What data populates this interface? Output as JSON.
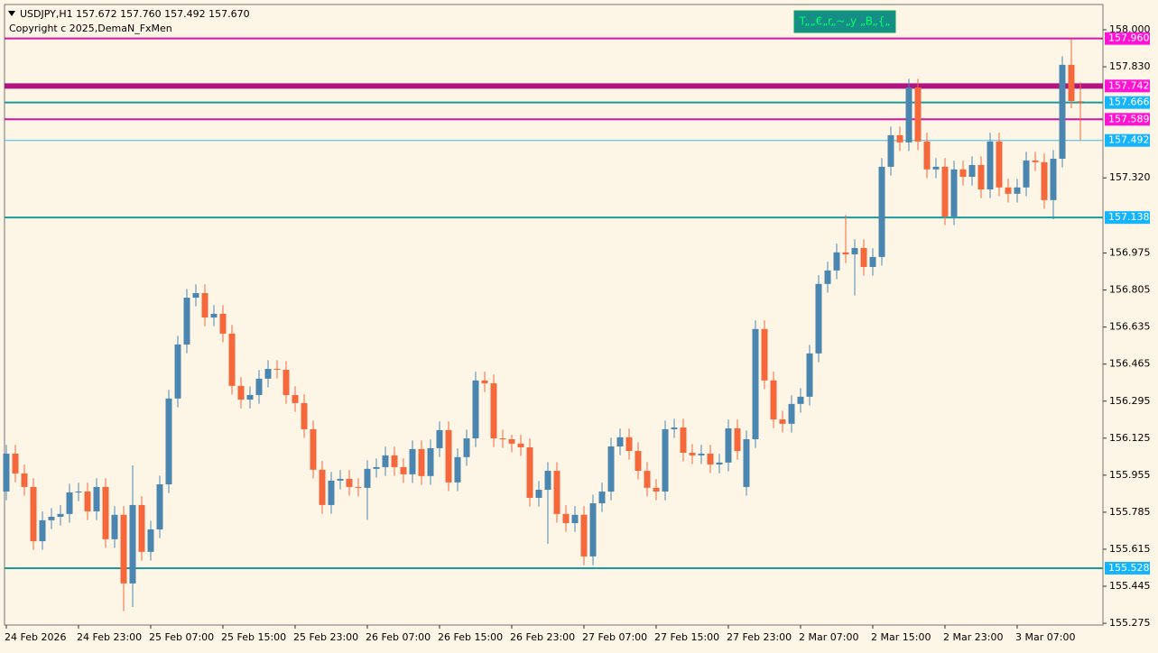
{
  "chart_data": {
    "type": "candlestick",
    "header": "USDJPY,H1  157.672 157.760 157.492 157.670",
    "subtitle": "Copyright c 2025,DemaN_FxMen",
    "button": "T„„€„r„~„y „B„{„",
    "bull_color": "#4a86b0",
    "bear_color": "#f4683c",
    "categories": [
      "24 Feb 2026",
      null,
      null,
      null,
      null,
      null,
      null,
      null,
      "24 Feb 23:00",
      null,
      null,
      null,
      null,
      null,
      null,
      null,
      "25 Feb 07:00",
      null,
      null,
      null,
      null,
      null,
      null,
      null,
      "25 Feb 15:00",
      null,
      null,
      null,
      null,
      null,
      null,
      null,
      "25 Feb 23:00",
      null,
      null,
      null,
      null,
      null,
      null,
      null,
      "26 Feb 07:00",
      null,
      null,
      null,
      null,
      null,
      null,
      null,
      "26 Feb 15:00",
      null,
      null,
      null,
      null,
      null,
      null,
      null,
      "26 Feb 23:00",
      null,
      null,
      null,
      null,
      null,
      null,
      null,
      "27 Feb 07:00",
      null,
      null,
      null,
      null,
      null,
      null,
      null,
      "27 Feb 15:00",
      null,
      null,
      null,
      null,
      null,
      null,
      null,
      "27 Feb 23:00",
      null,
      null,
      null,
      null,
      null,
      null,
      null,
      "2 Mar 07:00",
      null,
      null,
      null,
      null,
      null,
      null,
      null,
      "2 Mar 15:00",
      null,
      null,
      null,
      null,
      null,
      null,
      null,
      "2 Mar 23:00",
      null,
      null,
      null,
      null,
      null,
      null,
      null,
      "3 Mar 07:00",
      null,
      null,
      null,
      null,
      null,
      null,
      null
    ],
    "open": [
      155.88,
      156.054,
      155.963,
      155.901,
      155.652,
      155.748,
      155.764,
      155.777,
      155.876,
      155.88,
      155.789,
      155.901,
      155.661,
      155.773,
      155.458,
      155.818,
      155.603,
      155.706,
      155.913,
      156.307,
      156.555,
      156.77,
      156.791,
      156.679,
      156.696,
      156.605,
      156.365,
      156.302,
      156.323,
      156.398,
      156.443,
      156.439,
      156.323,
      156.286,
      156.166,
      155.98,
      155.818,
      155.93,
      155.938,
      155.901,
      155.897,
      155.984,
      155.992,
      156.046,
      155.992,
      155.959,
      156.075,
      155.951,
      156.079,
      156.162,
      155.922,
      156.038,
      156.124,
      156.39,
      156.377,
      156.124,
      156.12,
      156.1,
      156.083,
      155.851,
      155.888,
      155.975,
      155.777,
      155.735,
      155.773,
      155.582,
      155.826,
      155.88,
      156.087,
      156.129,
      156.066,
      155.975,
      155.897,
      155.88,
      156.166,
      156.174,
      156.058,
      156.046,
      156.054,
      156.004,
      156.013,
      156.17,
      155.901,
      156.12,
      156.626,
      156.39,
      156.211,
      156.191,
      156.282,
      156.315,
      156.514,
      156.833,
      156.895,
      156.978,
      156.969,
      156.998,
      156.911,
      156.957,
      157.371,
      157.516,
      157.483,
      157.735,
      157.487,
      157.359,
      157.371,
      157.143,
      157.359,
      157.325,
      157.379,
      157.267,
      157.487,
      157.276,
      157.247,
      157.276,
      157.4,
      157.392,
      157.218,
      157.408,
      157.839,
      157.672
    ],
    "high": [
      156.094,
      156.094,
      156.003,
      155.941,
      155.788,
      155.804,
      155.817,
      155.916,
      155.92,
      155.92,
      155.941,
      155.941,
      155.813,
      155.813,
      156.0,
      155.858,
      155.746,
      155.953,
      156.347,
      156.595,
      156.81,
      156.831,
      156.831,
      156.736,
      156.736,
      156.645,
      156.405,
      156.363,
      156.438,
      156.483,
      156.483,
      156.479,
      156.363,
      156.326,
      156.206,
      156.02,
      155.97,
      155.978,
      155.978,
      155.941,
      156.024,
      156.032,
      156.086,
      156.086,
      156.032,
      156.115,
      156.115,
      156.119,
      156.202,
      156.202,
      156.078,
      156.164,
      156.43,
      156.43,
      156.417,
      156.164,
      156.14,
      156.14,
      156.123,
      155.928,
      156.015,
      156.015,
      155.817,
      155.813,
      155.813,
      155.866,
      155.92,
      156.127,
      156.169,
      156.169,
      156.106,
      156.015,
      155.937,
      156.206,
      156.214,
      156.214,
      156.098,
      156.094,
      156.094,
      156.053,
      156.21,
      156.21,
      156.16,
      156.666,
      156.666,
      156.43,
      156.251,
      156.322,
      156.355,
      156.554,
      156.873,
      156.935,
      157.018,
      157.15,
      157.038,
      157.038,
      156.997,
      157.411,
      157.556,
      157.556,
      157.775,
      157.775,
      157.527,
      157.411,
      157.411,
      157.399,
      157.399,
      157.419,
      157.419,
      157.527,
      157.527,
      157.316,
      157.316,
      157.44,
      157.44,
      157.432,
      157.448,
      157.879,
      157.96,
      157.76
    ],
    "low": [
      155.84,
      155.923,
      155.861,
      155.612,
      155.612,
      155.708,
      155.724,
      155.737,
      155.836,
      155.749,
      155.749,
      155.621,
      155.621,
      155.33,
      155.35,
      155.563,
      155.563,
      155.666,
      155.873,
      156.267,
      156.515,
      156.73,
      156.639,
      156.639,
      156.565,
      156.325,
      156.262,
      156.262,
      156.283,
      156.358,
      156.399,
      156.283,
      156.246,
      156.126,
      155.94,
      155.778,
      155.778,
      155.89,
      155.861,
      155.857,
      155.75,
      155.944,
      155.952,
      155.952,
      155.919,
      155.919,
      155.911,
      155.911,
      156.039,
      155.882,
      155.882,
      155.998,
      156.084,
      156.337,
      156.084,
      156.08,
      156.06,
      156.043,
      155.811,
      155.811,
      155.64,
      155.737,
      155.695,
      155.695,
      155.542,
      155.542,
      155.786,
      155.84,
      156.047,
      156.026,
      155.935,
      155.857,
      155.84,
      155.84,
      156.126,
      156.018,
      156.006,
      156.006,
      155.964,
      155.964,
      155.973,
      156.026,
      155.861,
      156.08,
      156.35,
      156.171,
      156.151,
      156.151,
      156.242,
      156.275,
      156.474,
      156.793,
      156.855,
      156.929,
      156.78,
      156.871,
      156.871,
      156.917,
      157.331,
      157.443,
      157.443,
      157.447,
      157.319,
      157.319,
      157.103,
      157.103,
      157.285,
      157.285,
      157.227,
      157.227,
      157.236,
      157.207,
      157.207,
      157.236,
      157.352,
      157.178,
      157.13,
      157.368,
      157.64,
      157.492
    ],
    "close": [
      156.054,
      155.963,
      155.901,
      155.652,
      155.748,
      155.764,
      155.777,
      155.876,
      155.88,
      155.789,
      155.901,
      155.661,
      155.773,
      155.458,
      155.818,
      155.603,
      155.706,
      155.913,
      156.307,
      156.555,
      156.77,
      156.791,
      156.679,
      156.696,
      156.605,
      156.365,
      156.302,
      156.323,
      156.398,
      156.443,
      156.439,
      156.323,
      156.286,
      156.166,
      155.98,
      155.818,
      155.93,
      155.938,
      155.901,
      155.897,
      155.984,
      155.992,
      156.046,
      155.992,
      155.959,
      156.075,
      155.951,
      156.079,
      156.162,
      155.922,
      156.038,
      156.124,
      156.39,
      156.377,
      156.124,
      156.12,
      156.1,
      156.083,
      155.851,
      155.888,
      155.975,
      155.777,
      155.735,
      155.773,
      155.582,
      155.826,
      155.88,
      156.087,
      156.129,
      156.066,
      155.975,
      155.897,
      155.88,
      156.166,
      156.174,
      156.058,
      156.046,
      156.054,
      156.004,
      156.013,
      156.17,
      156.066,
      156.12,
      156.626,
      156.39,
      156.211,
      156.191,
      156.282,
      156.315,
      156.514,
      156.833,
      156.895,
      156.978,
      156.969,
      156.998,
      156.911,
      156.957,
      157.371,
      157.516,
      157.483,
      157.735,
      157.487,
      157.359,
      157.371,
      157.143,
      157.359,
      157.325,
      157.379,
      157.267,
      157.487,
      157.276,
      157.247,
      157.276,
      157.4,
      157.392,
      157.218,
      157.408,
      157.839,
      157.673,
      157.67
    ],
    "levels": [
      {
        "price": {
          "value": 157.96,
          "label": "157.960"
        },
        "color": "#d4149e",
        "label_color": "#ff14d4",
        "width": 2
      },
      {
        "price": 157.742,
        "color": "#b0157f",
        "label_color": "#ff14d4",
        "width": 6
      },
      {
        "price": 157.666,
        "color": "#1a9a9a",
        "label_color": "#14b4ff",
        "width": 2
      },
      {
        "price": 157.589,
        "color": "#d4149e",
        "label_color": "#ff14d4",
        "width": 2
      },
      {
        "price": 157.492,
        "color": "#3cc0e8",
        "label_color": "#14b4ff",
        "width": 1
      },
      {
        "price": 157.138,
        "color": "#1a9a9a",
        "label_color": "#14b4ff",
        "width": 2
      },
      {
        "price": 155.528,
        "color": "#1a9a9a",
        "label_color": "#14b4ff",
        "width": 2
      }
    ],
    "ylim": [
      155.267,
      158.116
    ],
    "yticks": [
      {
        "value": 158.0,
        "label": "158.000"
      },
      {
        "value": 157.83,
        "label": "157.830"
      },
      {
        "value": 157.32,
        "label": "157.320"
      },
      156.975,
      156.805,
      156.635,
      156.465,
      156.295,
      156.125,
      155.955,
      155.785,
      155.615,
      155.445,
      155.275
    ]
  }
}
